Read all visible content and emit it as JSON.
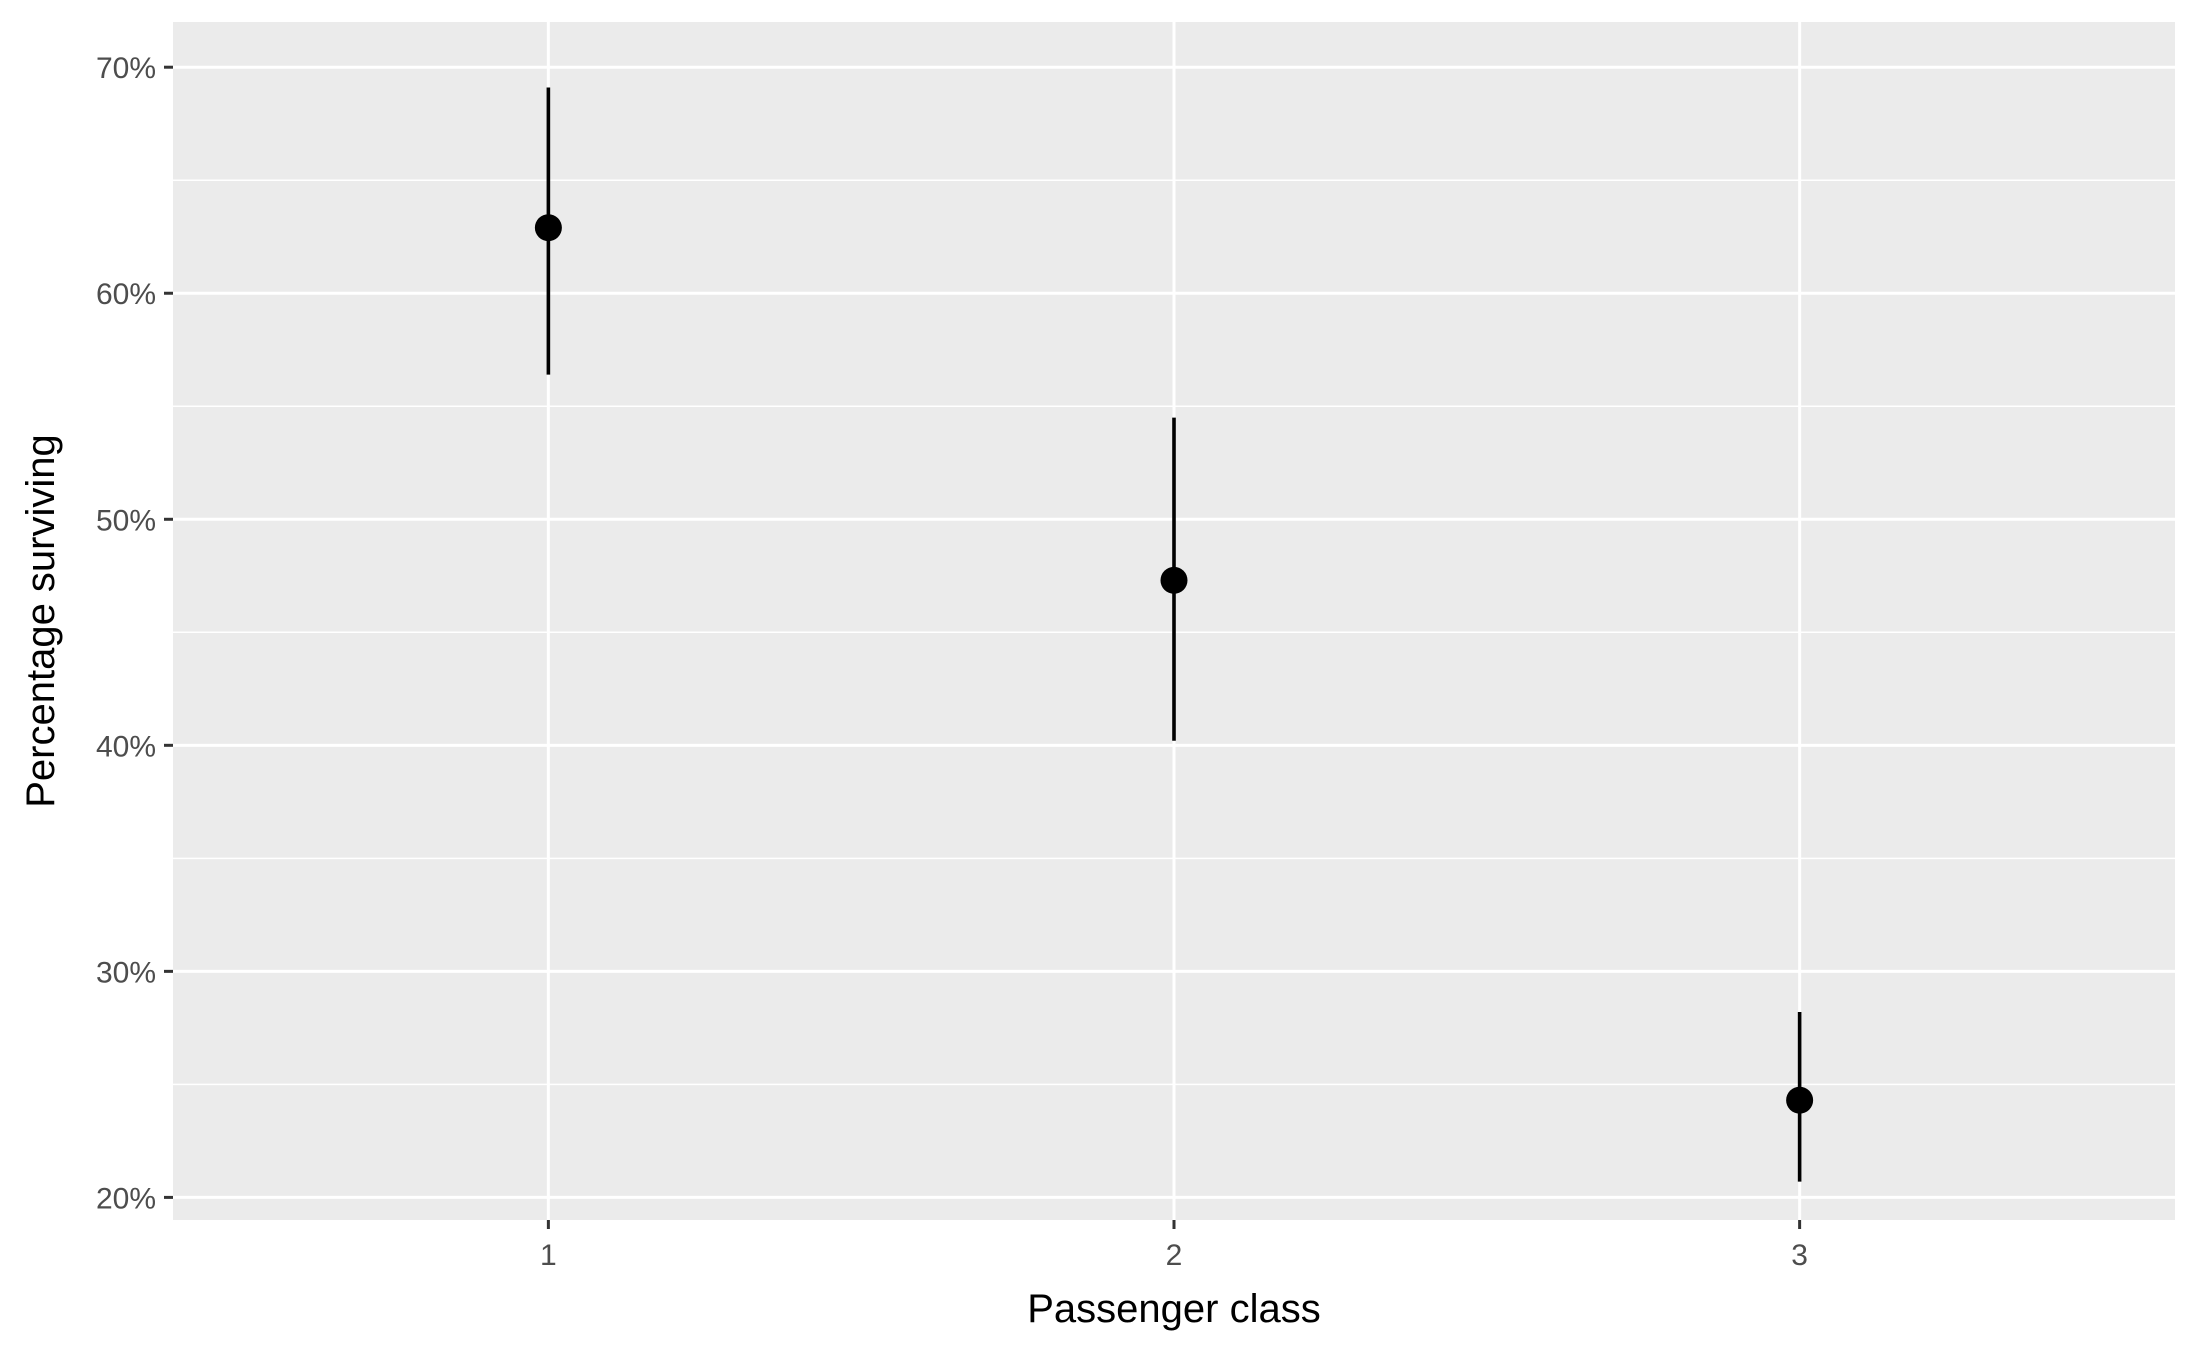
{
  "chart_data": {
    "type": "scatter",
    "title": "",
    "xlabel": "Passenger class",
    "ylabel": "Percentage surviving",
    "x_categories": [
      "1",
      "2",
      "3"
    ],
    "xlim": [
      0.4,
      3.6
    ],
    "ylim": [
      0.19,
      0.72
    ],
    "y_ticks": [
      0.2,
      0.3,
      0.4,
      0.5,
      0.6,
      0.7
    ],
    "y_tick_labels": [
      "20%",
      "30%",
      "40%",
      "50%",
      "60%",
      "70%"
    ],
    "points": [
      {
        "x": 1,
        "y": 0.629,
        "ymin": 0.564,
        "ymax": 0.691
      },
      {
        "x": 2,
        "y": 0.473,
        "ymin": 0.402,
        "ymax": 0.545
      },
      {
        "x": 3,
        "y": 0.243,
        "ymin": 0.207,
        "ymax": 0.282
      }
    ],
    "grid": true,
    "legend": "none",
    "colors": {
      "panel_background": "#ebebeb",
      "grid_line": "#ffffff",
      "point": "#000000",
      "tick_text": "#4d4d4d",
      "tick_mark": "#333333"
    }
  }
}
